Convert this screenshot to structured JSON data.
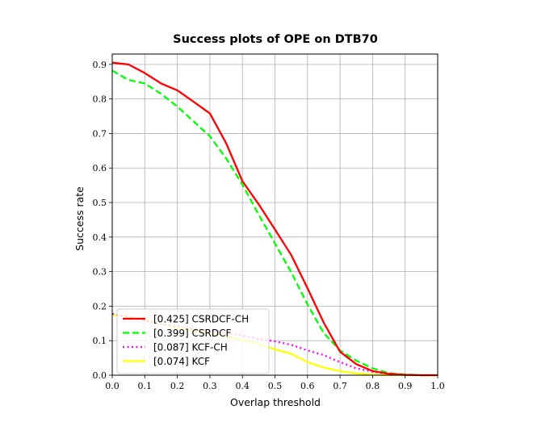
{
  "chart_data": {
    "type": "line",
    "title": "Success plots of OPE on DTB70",
    "xlabel": "Overlap threshold",
    "ylabel": "Success rate",
    "xlim": [
      0.0,
      1.0
    ],
    "ylim": [
      0.0,
      0.93
    ],
    "xticks": [
      "0.0",
      "0.1",
      "0.2",
      "0.3",
      "0.4",
      "0.5",
      "0.6",
      "0.7",
      "0.8",
      "0.9",
      "1.0"
    ],
    "yticks": [
      "0.0",
      "0.1",
      "0.2",
      "0.3",
      "0.4",
      "0.5",
      "0.6",
      "0.7",
      "0.8",
      "0.9"
    ],
    "grid": true,
    "legend_position": "lower-left",
    "series": [
      {
        "name": "[0.425] CSRDCF-CH",
        "color": "#ff0000",
        "style": "solid",
        "x": [
          0.0,
          0.05,
          0.1,
          0.15,
          0.2,
          0.25,
          0.3,
          0.35,
          0.4,
          0.45,
          0.5,
          0.55,
          0.6,
          0.65,
          0.7,
          0.75,
          0.8,
          0.85,
          0.9,
          0.95,
          1.0
        ],
        "y": [
          0.905,
          0.9,
          0.875,
          0.845,
          0.825,
          0.792,
          0.758,
          0.672,
          0.562,
          0.495,
          0.422,
          0.348,
          0.252,
          0.152,
          0.068,
          0.032,
          0.012,
          0.004,
          0.001,
          0.0,
          0.0
        ]
      },
      {
        "name": "[0.399] CSRDCF",
        "color": "#00ff00",
        "style": "dashed",
        "x": [
          0.0,
          0.05,
          0.1,
          0.15,
          0.2,
          0.25,
          0.3,
          0.35,
          0.4,
          0.45,
          0.5,
          0.55,
          0.6,
          0.65,
          0.7,
          0.75,
          0.8,
          0.85,
          0.9,
          0.95,
          1.0
        ],
        "y": [
          0.882,
          0.855,
          0.845,
          0.815,
          0.778,
          0.735,
          0.692,
          0.628,
          0.552,
          0.465,
          0.382,
          0.298,
          0.205,
          0.122,
          0.072,
          0.042,
          0.02,
          0.006,
          0.002,
          0.0,
          0.0
        ]
      },
      {
        "name": "[0.087] KCF-CH",
        "color": "#ff00ff",
        "style": "dotted",
        "x": [
          0.0,
          0.05,
          0.1,
          0.15,
          0.2,
          0.25,
          0.3,
          0.35,
          0.4,
          0.45,
          0.5,
          0.55,
          0.6,
          0.65,
          0.7,
          0.75,
          0.8,
          0.85,
          0.9,
          0.95,
          1.0
        ],
        "y": [
          0.178,
          0.168,
          0.158,
          0.148,
          0.142,
          0.135,
          0.13,
          0.122,
          0.115,
          0.105,
          0.098,
          0.088,
          0.072,
          0.058,
          0.038,
          0.02,
          0.01,
          0.004,
          0.001,
          0.0,
          0.0
        ]
      },
      {
        "name": "[0.074] KCF",
        "color": "#ffff00",
        "style": "solid",
        "x": [
          0.0,
          0.05,
          0.1,
          0.15,
          0.2,
          0.25,
          0.3,
          0.35,
          0.4,
          0.45,
          0.5,
          0.55,
          0.6,
          0.65,
          0.7,
          0.75,
          0.8,
          0.85,
          0.9,
          0.95,
          1.0
        ],
        "y": [
          0.175,
          0.17,
          0.16,
          0.148,
          0.138,
          0.128,
          0.122,
          0.112,
          0.102,
          0.09,
          0.075,
          0.062,
          0.038,
          0.022,
          0.012,
          0.005,
          0.002,
          0.0,
          0.0,
          0.0,
          0.0
        ]
      }
    ]
  }
}
